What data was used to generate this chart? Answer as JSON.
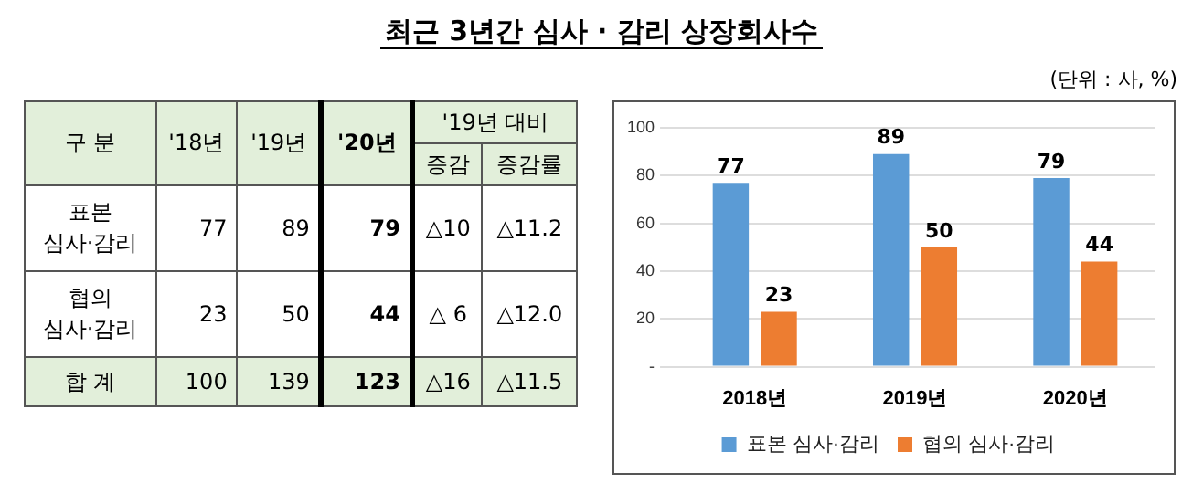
{
  "chart_data": [
    {
      "type": "other",
      "title": "최근 3년간 심사 · 감리 상장회사수",
      "annotations": [
        "구 분",
        "'18년",
        "'19년",
        "'20년",
        "'19년 대비",
        "증감",
        "증감률",
        "표본\n심사·감리",
        "77",
        "89",
        "79",
        "△10",
        "△11.2",
        "협의\n심사·감리",
        "23",
        "50",
        "44",
        "△ 6",
        "△12.0",
        "합 계",
        "100",
        "139",
        "123",
        "△16",
        "△11.5"
      ]
    },
    {
      "type": "bar",
      "categories": [
        "2018년",
        "2019년",
        "2020년"
      ],
      "series": [
        {
          "name": "표본 심사·감리",
          "color": "#5b9bd5",
          "values": [
            77,
            89,
            79
          ]
        },
        {
          "name": "협의 심사·감리",
          "color": "#ed7d31",
          "values": [
            23,
            50,
            44
          ]
        }
      ],
      "ylim": [
        0,
        100
      ],
      "yticks": [
        {
          "value": 0,
          "label": "-"
        },
        20,
        40,
        60,
        80,
        100
      ],
      "grid": "y",
      "legend": "bottom",
      "data_labels": true,
      "annotations": [
        "(단위 : 사, %)"
      ]
    }
  ]
}
